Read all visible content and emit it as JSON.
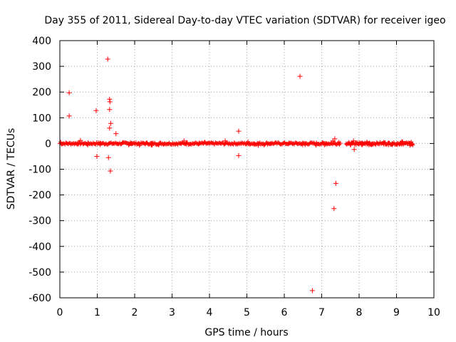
{
  "chart_data": {
    "type": "scatter",
    "title": "Day 355 of 2011, Sidereal Day-to-day VTEC variation (SDTVAR) for receiver igeo",
    "xlabel": "GPS time / hours",
    "ylabel": "SDTVAR / TECUs",
    "xlim": [
      0,
      10
    ],
    "ylim": [
      -600,
      400
    ],
    "x_ticks": [
      "0",
      "1",
      "2",
      "3",
      "4",
      "5",
      "6",
      "7",
      "8",
      "9",
      "10"
    ],
    "y_ticks": [
      "-600",
      "-500",
      "-400",
      "-300",
      "-200",
      "-100",
      "0",
      "100",
      "200",
      "300",
      "400"
    ],
    "grid": true,
    "marker": "+",
    "color": "#ff0000",
    "dense_band": {
      "note": "continuous band of points near zero",
      "segments": [
        [
          0.0,
          7.5
        ],
        [
          7.65,
          9.45
        ]
      ],
      "y_range": [
        -8,
        8
      ]
    },
    "series": [
      {
        "name": "SDTVAR",
        "points": [
          [
            0.25,
            197
          ],
          [
            0.25,
            107
          ],
          [
            0.55,
            12
          ],
          [
            0.97,
            128
          ],
          [
            0.99,
            -50
          ],
          [
            1.28,
            328
          ],
          [
            1.3,
            -55
          ],
          [
            1.33,
            172
          ],
          [
            1.34,
            162
          ],
          [
            1.33,
            132
          ],
          [
            1.36,
            78
          ],
          [
            1.33,
            60
          ],
          [
            1.5,
            38
          ],
          [
            1.35,
            -107
          ],
          [
            3.32,
            10
          ],
          [
            4.42,
            10
          ],
          [
            4.78,
            48
          ],
          [
            4.78,
            -47
          ],
          [
            6.42,
            261
          ],
          [
            6.75,
            -572
          ],
          [
            7.3,
            10
          ],
          [
            7.35,
            18
          ],
          [
            7.38,
            -155
          ],
          [
            7.33,
            -253
          ],
          [
            7.85,
            10
          ],
          [
            7.87,
            -23
          ]
        ]
      }
    ]
  }
}
